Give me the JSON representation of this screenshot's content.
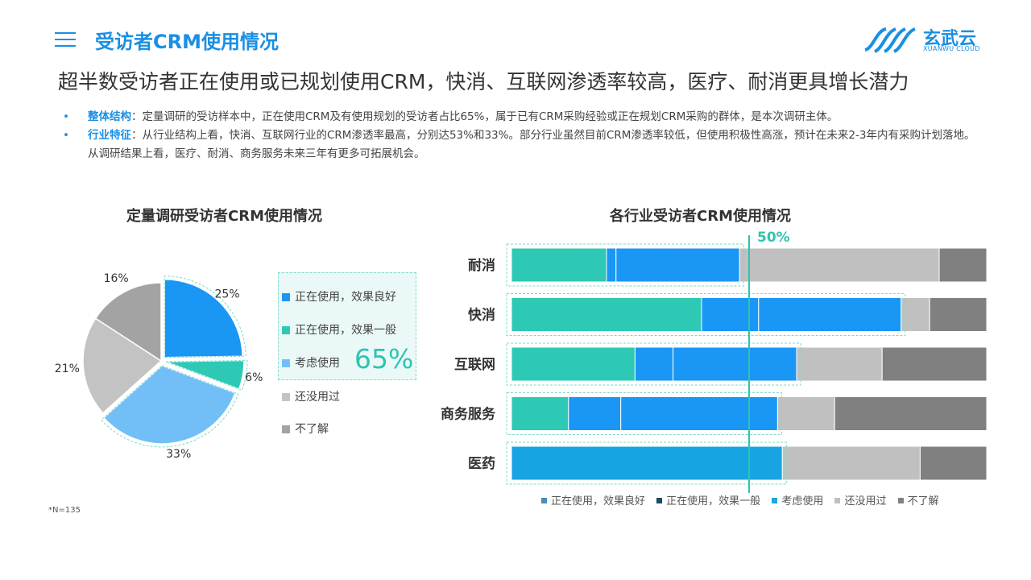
{
  "header": {
    "title": "受访者CRM使用情况",
    "logo_text": "玄武云",
    "logo_sub": "XUANWU CLOUD"
  },
  "headline": "超半数受访者正在使用或已规划使用CRM，快消、互联网渗透率较高，医疗、耐消更具增长潜力",
  "bullets": [
    {
      "key": "整体结构",
      "text": "：定量调研的受访样本中，正在使用CRM及有使用规划的受访者占比65%，属于已有CRM采购经验或正在规划CRM采购的群体，是本次调研主体。"
    },
    {
      "key": "行业特征",
      "text": "：从行业结构上看，快消、互联网行业的CRM渗透率最高，分别达53%和33%。部分行业虽然目前CRM渗透率较低，但使用积极性高涨，预计在未来2-3年内有采购计划落地。从调研结果上看，医疗、耐消、商务服务未来三年有更多可拓展机会。"
    }
  ],
  "pie_legend": {
    "items": [
      "正在使用，效果良好",
      "正在使用，效果一般",
      "考虑使用",
      "还没用过",
      "不了解"
    ],
    "highlight": "65%"
  },
  "footnote": "*N=135",
  "colors": {
    "blue": "#1a96f5",
    "teal": "#2ec9b4",
    "lightblue": "#72bff8",
    "lightgray": "#c3c3c3",
    "darkgray": "#a3a3a3",
    "bar_darkgray": "#808080",
    "bar_lightgray": "#c0c0c0",
    "accent": "#1a8fe3"
  },
  "chart_data": [
    {
      "type": "pie",
      "title": "定量调研受访者CRM使用情况",
      "labels": [
        "正在使用，效果良好",
        "正在使用，效果一般",
        "考虑使用",
        "还没用过",
        "不了解"
      ],
      "values": [
        25,
        6,
        33,
        21,
        16
      ],
      "value_labels": [
        "25%",
        "6%",
        "33%",
        "21%",
        "16%"
      ]
    },
    {
      "type": "bar",
      "orientation": "horizontal",
      "stacked": true,
      "title": "各行业受访者CRM使用情况",
      "categories": [
        "耐消",
        "快消",
        "互联网",
        "商务服务",
        "医药"
      ],
      "series": [
        {
          "name": "正在使用，效果良好",
          "values": [
            20,
            40,
            26,
            12,
            0
          ]
        },
        {
          "name": "正在使用，效果一般",
          "values": [
            2,
            12,
            8,
            11,
            0
          ]
        },
        {
          "name": "考虑使用",
          "values": [
            26,
            30,
            26,
            33,
            57
          ]
        },
        {
          "name": "还没用过",
          "values": [
            42,
            6,
            18,
            12,
            29
          ]
        },
        {
          "name": "不了解",
          "values": [
            10,
            12,
            22,
            32,
            14
          ]
        }
      ],
      "reference_line": {
        "value": 50,
        "label": "50%"
      },
      "xlim": [
        0,
        100
      ]
    }
  ]
}
